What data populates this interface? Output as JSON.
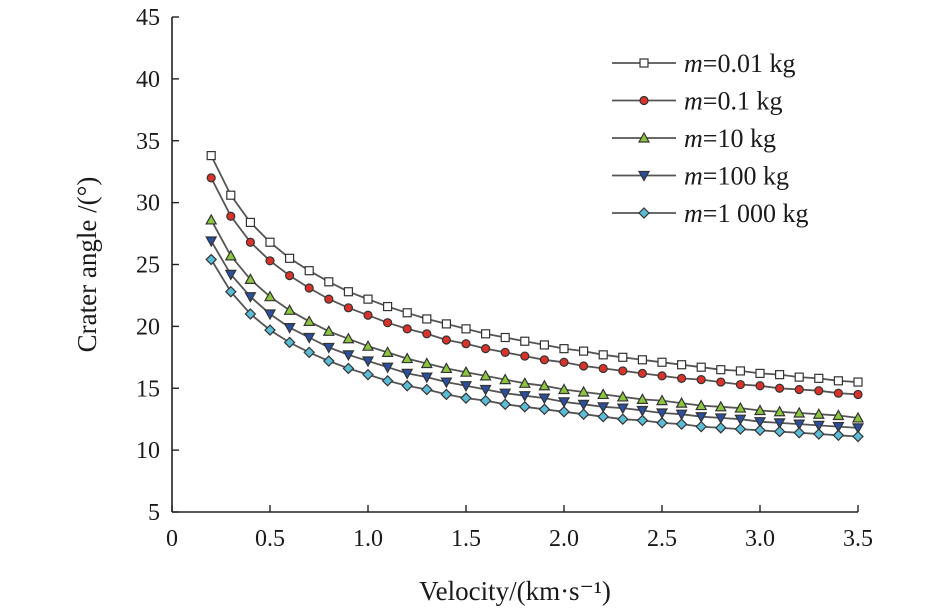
{
  "chart_data": {
    "type": "line",
    "xlabel": "Velocity/(km·s⁻¹)",
    "ylabel": "Crater angle /(°)",
    "xlim": [
      0,
      3.5
    ],
    "ylim": [
      5,
      45
    ],
    "xticks": [
      "0",
      "0.5",
      "1.0",
      "1.5",
      "2.0",
      "2.5",
      "3.0",
      "3.5"
    ],
    "yticks": [
      "5",
      "10",
      "15",
      "20",
      "25",
      "30",
      "35",
      "40",
      "45"
    ],
    "grid": false,
    "legend_position": "top-right",
    "x": [
      0.2,
      0.3,
      0.4,
      0.5,
      0.6,
      0.7,
      0.8,
      0.9,
      1.0,
      1.1,
      1.2,
      1.3,
      1.4,
      1.5,
      1.6,
      1.7,
      1.8,
      1.9,
      2.0,
      2.1,
      2.2,
      2.3,
      2.4,
      2.5,
      2.6,
      2.7,
      2.8,
      2.9,
      3.0,
      3.1,
      3.2,
      3.3,
      3.4,
      3.5
    ],
    "series": [
      {
        "name": "m=0.01 kg",
        "var": "m",
        "label": "=0.01 kg",
        "marker": "square",
        "color": "#222222",
        "values": [
          33.8,
          30.6,
          28.4,
          26.8,
          25.5,
          24.5,
          23.6,
          22.8,
          22.2,
          21.6,
          21.1,
          20.6,
          20.2,
          19.8,
          19.4,
          19.1,
          18.8,
          18.5,
          18.2,
          18.0,
          17.7,
          17.5,
          17.3,
          17.1,
          16.9,
          16.7,
          16.5,
          16.4,
          16.2,
          16.1,
          15.9,
          15.8,
          15.6,
          15.5
        ]
      },
      {
        "name": "m=0.1 kg",
        "var": "m",
        "label": "=0.1 kg",
        "marker": "circle",
        "color": "#d9322b",
        "values": [
          32.0,
          28.9,
          26.8,
          25.3,
          24.1,
          23.1,
          22.2,
          21.5,
          20.9,
          20.3,
          19.8,
          19.4,
          18.9,
          18.6,
          18.2,
          17.9,
          17.6,
          17.3,
          17.1,
          16.8,
          16.6,
          16.4,
          16.2,
          16.0,
          15.8,
          15.7,
          15.5,
          15.3,
          15.2,
          15.0,
          14.9,
          14.8,
          14.6,
          14.5
        ]
      },
      {
        "name": "m=10 kg",
        "var": "m",
        "label": "=10 kg",
        "marker": "triangle-up",
        "color": "#8cc63f",
        "values": [
          28.6,
          25.7,
          23.8,
          22.4,
          21.3,
          20.4,
          19.6,
          19.0,
          18.4,
          17.9,
          17.4,
          17.0,
          16.6,
          16.3,
          16.0,
          15.7,
          15.4,
          15.2,
          14.9,
          14.7,
          14.5,
          14.3,
          14.1,
          14.0,
          13.8,
          13.6,
          13.5,
          13.4,
          13.2,
          13.1,
          13.0,
          12.9,
          12.8,
          12.6
        ]
      },
      {
        "name": "m=100 kg",
        "var": "m",
        "label": "=100 kg",
        "marker": "triangle-down",
        "color": "#2b4f9e",
        "values": [
          26.9,
          24.2,
          22.4,
          21.0,
          19.9,
          19.1,
          18.3,
          17.7,
          17.2,
          16.7,
          16.2,
          15.9,
          15.5,
          15.2,
          14.9,
          14.6,
          14.4,
          14.2,
          13.9,
          13.7,
          13.5,
          13.4,
          13.2,
          13.0,
          12.9,
          12.7,
          12.6,
          12.5,
          12.3,
          12.2,
          12.1,
          12.0,
          11.9,
          11.8
        ]
      },
      {
        "name": "m=1 000 kg",
        "var": "m",
        "label": "=1 000 kg",
        "marker": "diamond",
        "color": "#5bbcd6",
        "values": [
          25.4,
          22.8,
          21.0,
          19.7,
          18.7,
          17.9,
          17.2,
          16.6,
          16.1,
          15.6,
          15.2,
          14.9,
          14.5,
          14.2,
          14.0,
          13.7,
          13.5,
          13.3,
          13.1,
          12.9,
          12.7,
          12.5,
          12.4,
          12.2,
          12.1,
          11.9,
          11.8,
          11.7,
          11.6,
          11.5,
          11.4,
          11.3,
          11.2,
          11.1
        ]
      }
    ]
  }
}
